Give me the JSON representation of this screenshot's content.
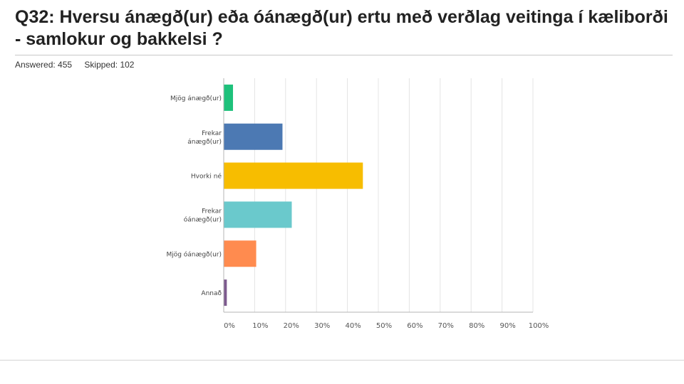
{
  "question": {
    "title": "Q32: Hversu  ánægð(ur) eða óánægð(ur) ertu með verðlag veitinga í kæliborði - samlokur og bakkelsi ?",
    "answered_label": "Answered: 455",
    "skipped_label": "Skipped: 102"
  },
  "chart_data": {
    "type": "bar",
    "orientation": "horizontal",
    "categories": [
      [
        "Mjög ánægð(ur)"
      ],
      [
        "Frekar",
        "ánægð(ur)"
      ],
      [
        "Hvorki né"
      ],
      [
        "Frekar",
        "óánægð(ur)"
      ],
      [
        "Mjög óánægð(ur)"
      ],
      [
        "Annað"
      ]
    ],
    "values": [
      3,
      19,
      45,
      22,
      10.5,
      1
    ],
    "colors": [
      "#1ec17b",
      "#4c79b3",
      "#f7bd00",
      "#6ac9cc",
      "#ff8b4f",
      "#7d5a8e"
    ],
    "xlim": [
      0,
      100
    ],
    "x_ticks": [
      "0%",
      "10%",
      "20%",
      "30%",
      "40%",
      "50%",
      "60%",
      "70%",
      "80%",
      "90%",
      "100%"
    ],
    "x_tick_values": [
      0,
      10,
      20,
      30,
      40,
      50,
      60,
      70,
      80,
      90,
      100
    ],
    "grid": true
  }
}
